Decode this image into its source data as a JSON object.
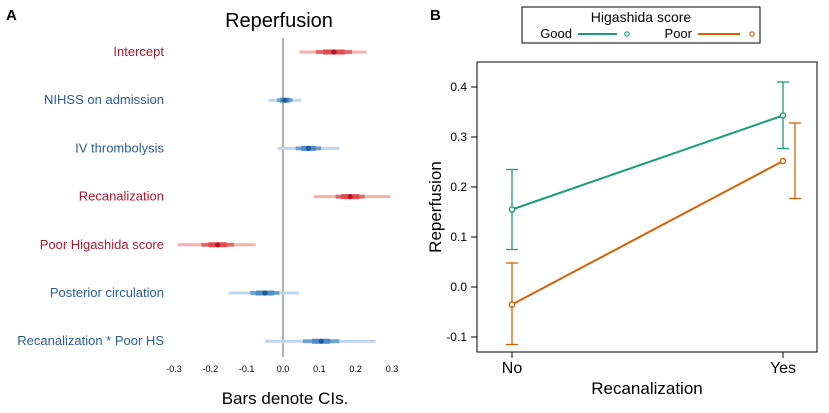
{
  "panels": {
    "a_label": "A",
    "b_label": "B"
  },
  "colors": {
    "red_light": "#f4b0ae",
    "red_mid": "#e34b4b",
    "red_dark": "#b5172a",
    "blue_light": "#bfd6ea",
    "blue_mid": "#4d8cc6",
    "blue_dark": "#1d5c97",
    "label_red": "#b5172a",
    "label_blue": "#2b5e9a",
    "zero_line": "#b0b0b0",
    "good": "#1b9e77",
    "poor": "#d95f02"
  },
  "chart_data": [
    {
      "type": "forest",
      "title": "Reperfusion",
      "xlabel": "Bars denote CIs.",
      "xlim": [
        -0.32,
        0.32
      ],
      "xticks": [
        -0.3,
        -0.2,
        -0.1,
        0.0,
        0.1,
        0.2,
        0.3
      ],
      "xtick_labels": [
        "-0.3",
        "-0.2",
        "-0.1",
        "0.0",
        "0.1",
        "0.2",
        "0.3"
      ],
      "rows": [
        {
          "label": "Intercept",
          "estimate": 0.14,
          "ci_inner": [
            0.11,
            0.17
          ],
          "ci_mid": [
            0.09,
            0.19
          ],
          "ci_outer": [
            0.045,
            0.23
          ],
          "sign": "pos"
        },
        {
          "label": "NIHSS on admission",
          "estimate": 0.005,
          "ci_inner": [
            -0.008,
            0.018
          ],
          "ci_mid": [
            -0.016,
            0.026
          ],
          "ci_outer": [
            -0.04,
            0.05
          ],
          "sign": "neg"
        },
        {
          "label": "IV thrombolysis",
          "estimate": 0.07,
          "ci_inner": [
            0.05,
            0.09
          ],
          "ci_mid": [
            0.035,
            0.105
          ],
          "ci_outer": [
            -0.015,
            0.155
          ],
          "sign": "neg"
        },
        {
          "label": "Recanalization",
          "estimate": 0.185,
          "ci_inner": [
            0.16,
            0.21
          ],
          "ci_mid": [
            0.145,
            0.225
          ],
          "ci_outer": [
            0.085,
            0.295
          ],
          "sign": "pos"
        },
        {
          "label": "Poor Higashida score",
          "estimate": -0.18,
          "ci_inner": [
            -0.205,
            -0.155
          ],
          "ci_mid": [
            -0.225,
            -0.135
          ],
          "ci_outer": [
            -0.29,
            -0.075
          ],
          "sign": "pos"
        },
        {
          "label": "Posterior circulation",
          "estimate": -0.05,
          "ci_inner": [
            -0.075,
            -0.025
          ],
          "ci_mid": [
            -0.09,
            -0.01
          ],
          "ci_outer": [
            -0.15,
            0.045
          ],
          "sign": "neg"
        },
        {
          "label": "Recanalization * Poor HS",
          "estimate": 0.105,
          "ci_inner": [
            0.08,
            0.13
          ],
          "ci_mid": [
            0.055,
            0.155
          ],
          "ci_outer": [
            -0.05,
            0.255
          ],
          "sign": "neg"
        }
      ]
    },
    {
      "type": "line",
      "title": "",
      "xlabel": "Recanalization",
      "ylabel": "Reperfusion",
      "categories": [
        "No",
        "Yes"
      ],
      "ylim": [
        -0.13,
        0.45
      ],
      "yticks": [
        -0.1,
        0.0,
        0.1,
        0.2,
        0.3,
        0.4
      ],
      "ytick_labels": [
        "-0.1",
        "0.0",
        "0.1",
        "0.2",
        "0.3",
        "0.4"
      ],
      "legend": {
        "title": "Higashida score",
        "placement": "top"
      },
      "series": [
        {
          "name": "Good",
          "values": [
            0.155,
            0.343
          ],
          "ci_lower": [
            0.075,
            0.277
          ],
          "ci_upper": [
            0.235,
            0.41
          ]
        },
        {
          "name": "Poor",
          "values": [
            -0.035,
            0.252
          ],
          "ci_lower": [
            -0.115,
            0.177
          ],
          "ci_upper": [
            0.048,
            0.328
          ]
        }
      ]
    }
  ]
}
